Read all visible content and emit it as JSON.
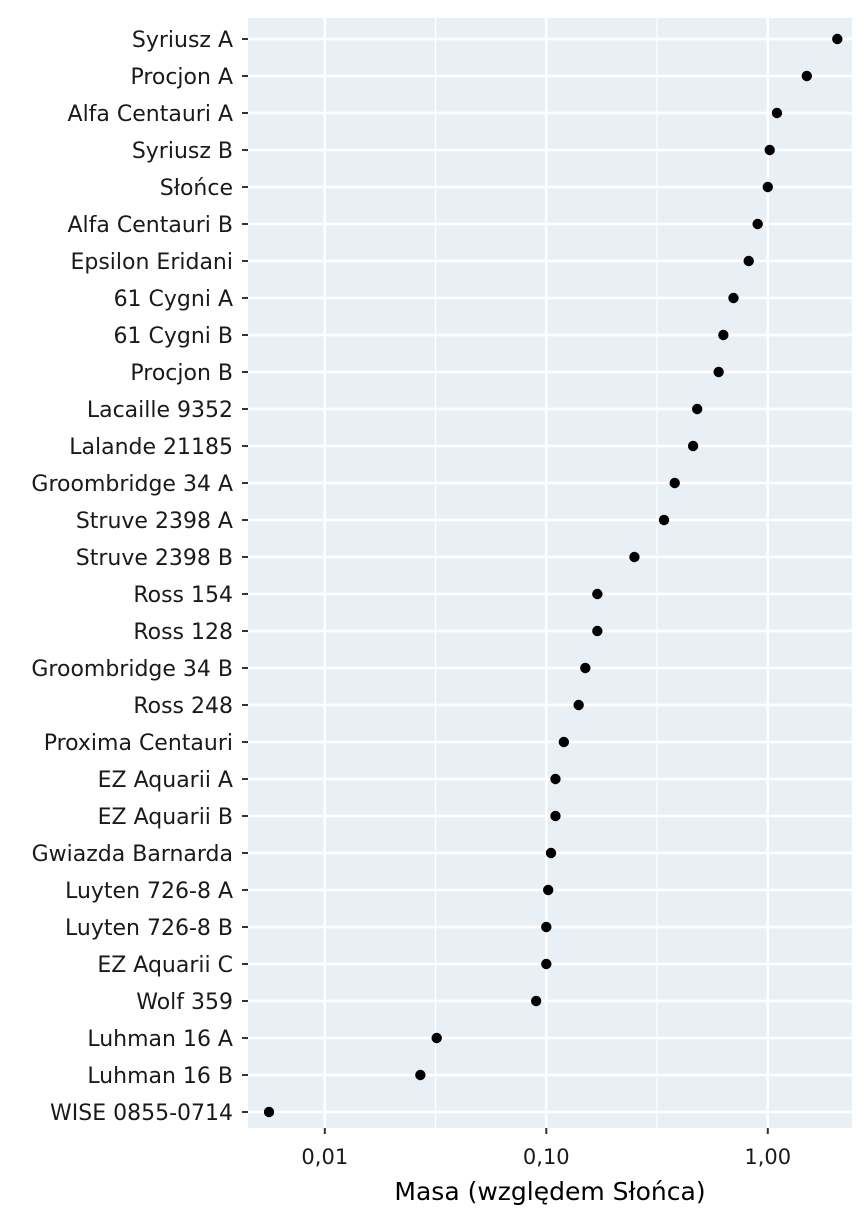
{
  "colors": {
    "panel_background": "#e8f0f6",
    "grid_line": "#ffffff",
    "point": "#000000",
    "tick": "#333333",
    "text": "#1a1a1a"
  },
  "chart_data": {
    "type": "scatter",
    "title": "",
    "xlabel": "Masa (względem Słońca)",
    "ylabel": "",
    "x_scale": "log",
    "xlim": [
      0.0045,
      2.4
    ],
    "x_ticks": [
      0.01,
      0.1,
      1
    ],
    "x_tick_labels": [
      "0,01",
      "0,10",
      "1,00"
    ],
    "grid": true,
    "legend": "none",
    "categories": [
      "Syriusz A",
      "Procjon A",
      "Alfa Centauri A",
      "Syriusz B",
      "Słońce",
      "Alfa Centauri B",
      "Epsilon Eridani",
      "61 Cygni A",
      "61 Cygni B",
      "Procjon B",
      "Lacaille 9352",
      "Lalande 21185",
      "Groombridge 34 A",
      "Struve 2398 A",
      "Struve 2398 B",
      "Ross 154",
      "Ross 128",
      "Groombridge 34 B",
      "Ross 248",
      "Proxima Centauri",
      "EZ Aquarii A",
      "EZ Aquarii B",
      "Gwiazda Barnarda",
      "Luyten 726-8 A",
      "Luyten 726-8 B",
      "EZ Aquarii C",
      "Wolf 359",
      "Luhman 16 A",
      "Luhman 16 B",
      "WISE 0855-0714"
    ],
    "values": [
      2.06,
      1.5,
      1.1,
      1.02,
      1.0,
      0.9,
      0.82,
      0.7,
      0.63,
      0.6,
      0.48,
      0.46,
      0.38,
      0.34,
      0.25,
      0.17,
      0.17,
      0.15,
      0.14,
      0.12,
      0.11,
      0.11,
      0.105,
      0.102,
      0.1,
      0.1,
      0.09,
      0.032,
      0.027,
      0.0056
    ]
  }
}
